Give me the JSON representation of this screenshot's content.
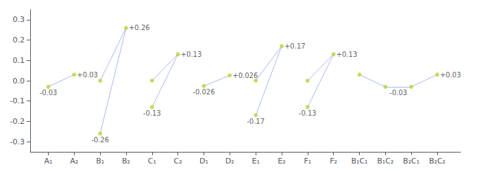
{
  "chart_data": {
    "type": "scatter",
    "xlim": [
      0.3,
      16.9
    ],
    "ylim": [
      -0.35,
      0.35
    ],
    "xticks": [
      {
        "value": 1,
        "label": "A₁"
      },
      {
        "value": 2,
        "label": "A₂"
      },
      {
        "value": 3,
        "label": "B₁"
      },
      {
        "value": 4,
        "label": "B₂"
      },
      {
        "value": 5,
        "label": "C₁"
      },
      {
        "value": 6,
        "label": "C₂"
      },
      {
        "value": 7,
        "label": "D₁"
      },
      {
        "value": 8,
        "label": "D₂"
      },
      {
        "value": 9,
        "label": "E₁"
      },
      {
        "value": 10,
        "label": "E₂"
      },
      {
        "value": 11,
        "label": "F₁"
      },
      {
        "value": 12,
        "label": "F₂"
      },
      {
        "value": 13,
        "label": "B₁C₁"
      },
      {
        "value": 14,
        "label": "B₁C₂"
      },
      {
        "value": 15,
        "label": "B₂C₁"
      },
      {
        "value": 16,
        "label": "B₂C₂"
      }
    ],
    "yticks": [
      -0.3,
      -0.2,
      -0.1,
      {
        "value": 0,
        "label": "0.0"
      },
      0.1,
      0.2,
      0.3
    ],
    "grid": false,
    "points": {
      "x": [
        1,
        2,
        3,
        4,
        3,
        5,
        6,
        5,
        7,
        8,
        9,
        10,
        9,
        11,
        12,
        11,
        13,
        14,
        15,
        16
      ],
      "y": [
        -0.03,
        0.03,
        0.0,
        0.26,
        -0.26,
        0.0,
        0.13,
        -0.13,
        -0.026,
        0.026,
        0.0,
        0.17,
        -0.17,
        0.0,
        0.13,
        -0.13,
        0.03,
        -0.03,
        -0.03,
        0.03
      ]
    },
    "segments": [
      {
        "x": [
          1,
          2
        ],
        "y": [
          -0.03,
          0.03
        ]
      },
      {
        "x": [
          3,
          4
        ],
        "y": [
          0.0,
          0.26
        ]
      },
      {
        "x": [
          4,
          3
        ],
        "y": [
          0.26,
          -0.26
        ]
      },
      {
        "x": [
          5,
          6
        ],
        "y": [
          0.0,
          0.13
        ]
      },
      {
        "x": [
          6,
          5
        ],
        "y": [
          0.13,
          -0.13
        ]
      },
      {
        "x": [
          7,
          8
        ],
        "y": [
          -0.026,
          0.026
        ]
      },
      {
        "x": [
          9,
          10
        ],
        "y": [
          0.0,
          0.17
        ]
      },
      {
        "x": [
          10,
          9
        ],
        "y": [
          0.17,
          -0.17
        ]
      },
      {
        "x": [
          11,
          12
        ],
        "y": [
          0.0,
          0.13
        ]
      },
      {
        "x": [
          12,
          11
        ],
        "y": [
          0.13,
          -0.13
        ]
      },
      {
        "x": [
          13,
          14
        ],
        "y": [
          0.03,
          -0.03
        ]
      },
      {
        "x": [
          14,
          15
        ],
        "y": [
          -0.03,
          -0.03
        ]
      },
      {
        "x": [
          15,
          16
        ],
        "y": [
          -0.03,
          0.03
        ]
      }
    ],
    "annotations": [
      {
        "x": 1,
        "y": -0.03,
        "text": "-0.03"
      },
      {
        "x": 2,
        "y": 0.03,
        "text": "+0.03"
      },
      {
        "x": 4,
        "y": 0.26,
        "text": "+0.26"
      },
      {
        "x": 3,
        "y": -0.26,
        "text": "-0.26"
      },
      {
        "x": 6,
        "y": 0.13,
        "text": "+0.13"
      },
      {
        "x": 5,
        "y": -0.13,
        "text": "-0.13"
      },
      {
        "x": 8,
        "y": 0.026,
        "text": "+0.026"
      },
      {
        "x": 7,
        "y": -0.026,
        "text": "-0.026"
      },
      {
        "x": 10,
        "y": 0.17,
        "text": "+0.17"
      },
      {
        "x": 9,
        "y": -0.17,
        "text": "-0.17"
      },
      {
        "x": 12,
        "y": 0.13,
        "text": "+0.13"
      },
      {
        "x": 11,
        "y": -0.13,
        "text": "-0.13"
      },
      {
        "x": 16,
        "y": 0.03,
        "text": "+0.03"
      },
      {
        "x": 14.5,
        "y": -0.03,
        "text": "-0.03"
      }
    ]
  }
}
